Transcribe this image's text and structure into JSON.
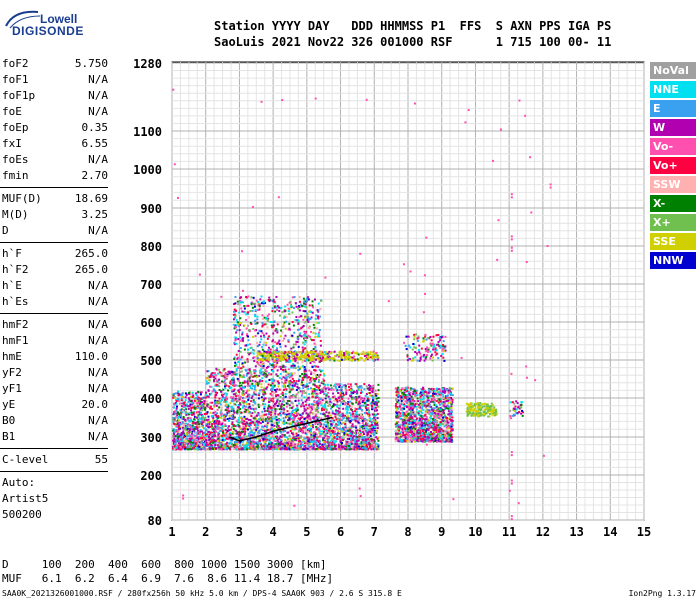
{
  "logo": {
    "brand_top": "Lowell",
    "brand_bottom": "DIGISONDE"
  },
  "header": {
    "row1": "Station YYYY DAY   DDD HHMMSS P1  FFS  S AXN PPS IGA PS",
    "row2": "SaoLuis 2021 Nov22 326 001000 RSF      1 715 100 00- 11"
  },
  "params_group1": [
    {
      "k": "foF2",
      "v": "5.750"
    },
    {
      "k": "foF1",
      "v": "N/A"
    },
    {
      "k": "foF1p",
      "v": "N/A"
    },
    {
      "k": "foE",
      "v": "N/A"
    },
    {
      "k": "foEp",
      "v": "0.35"
    },
    {
      "k": "fxI",
      "v": "6.55"
    },
    {
      "k": "foEs",
      "v": "N/A"
    },
    {
      "k": "fmin",
      "v": "2.70"
    }
  ],
  "params_group2": [
    {
      "k": "MUF(D)",
      "v": "18.69"
    },
    {
      "k": "M(D)",
      "v": "3.25"
    },
    {
      "k": "D",
      "v": "N/A"
    }
  ],
  "params_group3": [
    {
      "k": "h`F",
      "v": "265.0"
    },
    {
      "k": "h`F2",
      "v": "265.0"
    },
    {
      "k": "h`E",
      "v": "N/A"
    },
    {
      "k": "h`Es",
      "v": "N/A"
    }
  ],
  "params_group4": [
    {
      "k": "hmF2",
      "v": "N/A"
    },
    {
      "k": "hmF1",
      "v": "N/A"
    },
    {
      "k": "hmE",
      "v": "110.0"
    },
    {
      "k": "yF2",
      "v": "N/A"
    },
    {
      "k": "yF1",
      "v": "N/A"
    },
    {
      "k": "yE",
      "v": "20.0"
    },
    {
      "k": "B0",
      "v": "N/A"
    },
    {
      "k": "B1",
      "v": "N/A"
    }
  ],
  "clevel": {
    "k": "C-level",
    "v": "55"
  },
  "auto": [
    "Auto:",
    "Artist5",
    "500200"
  ],
  "legend": [
    {
      "label": "NoVal",
      "color": "#a0a0a0"
    },
    {
      "label": "NNE",
      "color": "#00e0f0"
    },
    {
      "label": "E",
      "color": "#3aa0f0"
    },
    {
      "label": "W",
      "color": "#b000b0"
    },
    {
      "label": "Vo-",
      "color": "#ff50b0"
    },
    {
      "label": "Vo+",
      "color": "#ff0040"
    },
    {
      "label": "SSW",
      "color": "#ffb0b0"
    },
    {
      "label": "X-",
      "color": "#008000"
    },
    {
      "label": "X+",
      "color": "#70c050"
    },
    {
      "label": "SSE",
      "color": "#d0d000"
    },
    {
      "label": "NNW",
      "color": "#0000d0"
    }
  ],
  "bottom": {
    "d_row": "D     100  200  400  600  800 1000 1500 3000 [km]",
    "muf_row": "MUF   6.1  6.2  6.4  6.9  7.6  8.6 11.4 18.7 [MHz]"
  },
  "footer": {
    "left": "SAA0K_2021326001000.RSF / 280fx256h 50 kHz 5.0 km / DPS-4 SAA0K 903 / 2.6 S 315.8 E",
    "right": "Ion2Png 1.3.17"
  },
  "chart_data": {
    "type": "scatter",
    "x_ticks": [
      1,
      2,
      3,
      4,
      5,
      6,
      7,
      8,
      9,
      10,
      11,
      12,
      13,
      14,
      15
    ],
    "xlim": [
      1,
      15
    ],
    "y_ticks": [
      80,
      200,
      300,
      400,
      500,
      600,
      700,
      800,
      900,
      1000,
      1100,
      1280
    ],
    "ylim": [
      80,
      1280
    ],
    "y_scale": "nonlinear",
    "grid": true,
    "legend_position": "right",
    "trace_description": "ionogram echo cluster"
  }
}
